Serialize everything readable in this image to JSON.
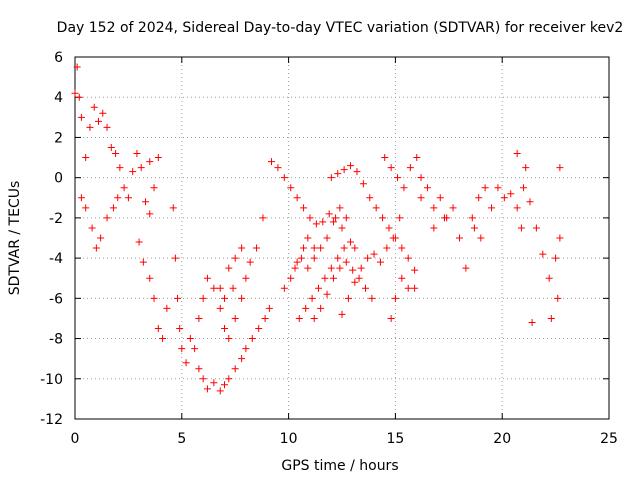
{
  "chart_data": {
    "type": "scatter",
    "title": "Day 152 of 2024, Sidereal Day-to-day VTEC variation (SDTVAR) for receiver kev2",
    "xlabel": "GPS time / hours",
    "ylabel": "SDTVAR / TECUs",
    "xlim": [
      0,
      25
    ],
    "ylim": [
      -12,
      6
    ],
    "xticks": [
      "0",
      "5",
      "10",
      "15",
      "20",
      "25"
    ],
    "yticks": [
      "6",
      "4",
      "2",
      "0",
      "-2",
      "-4",
      "-6",
      "-8",
      "-10",
      "-12"
    ],
    "grid": true,
    "marker": "+",
    "color": "#ff0000",
    "series": [
      {
        "name": "SDTVAR",
        "points": [
          [
            0.0,
            4.2
          ],
          [
            0.1,
            5.5
          ],
          [
            0.2,
            4.0
          ],
          [
            0.3,
            3.0
          ],
          [
            0.5,
            1.0
          ],
          [
            0.7,
            2.5
          ],
          [
            0.9,
            3.5
          ],
          [
            1.1,
            2.8
          ],
          [
            1.3,
            3.2
          ],
          [
            1.5,
            2.5
          ],
          [
            1.7,
            1.5
          ],
          [
            1.9,
            1.2
          ],
          [
            2.1,
            0.5
          ],
          [
            2.3,
            -0.5
          ],
          [
            2.5,
            -1.0
          ],
          [
            2.7,
            0.3
          ],
          [
            2.9,
            1.2
          ],
          [
            3.1,
            0.5
          ],
          [
            3.3,
            -1.2
          ],
          [
            3.5,
            -1.8
          ],
          [
            3.7,
            -0.5
          ],
          [
            3.9,
            1.0
          ],
          [
            3.5,
            0.8
          ],
          [
            0.3,
            -1.0
          ],
          [
            0.5,
            -1.5
          ],
          [
            0.8,
            -2.5
          ],
          [
            1.0,
            -3.5
          ],
          [
            1.2,
            -3.0
          ],
          [
            1.5,
            -2.0
          ],
          [
            1.8,
            -1.5
          ],
          [
            2.0,
            -1.0
          ],
          [
            3.0,
            -3.2
          ],
          [
            3.2,
            -4.2
          ],
          [
            3.5,
            -5.0
          ],
          [
            3.7,
            -6.0
          ],
          [
            3.9,
            -7.5
          ],
          [
            4.1,
            -8.0
          ],
          [
            4.3,
            -6.5
          ],
          [
            4.6,
            -1.5
          ],
          [
            4.7,
            -4.0
          ],
          [
            4.8,
            -6.0
          ],
          [
            4.9,
            -7.5
          ],
          [
            5.0,
            -8.5
          ],
          [
            5.2,
            -9.2
          ],
          [
            5.4,
            -8.0
          ],
          [
            5.6,
            -8.5
          ],
          [
            5.8,
            -9.5
          ],
          [
            6.0,
            -10.0
          ],
          [
            6.2,
            -10.5
          ],
          [
            6.5,
            -10.2
          ],
          [
            6.8,
            -10.6
          ],
          [
            7.0,
            -10.3
          ],
          [
            7.2,
            -10.0
          ],
          [
            7.5,
            -9.5
          ],
          [
            7.8,
            -9.0
          ],
          [
            8.0,
            -8.5
          ],
          [
            8.3,
            -8.0
          ],
          [
            8.6,
            -7.5
          ],
          [
            8.9,
            -7.0
          ],
          [
            9.1,
            -6.5
          ],
          [
            5.8,
            -7.0
          ],
          [
            6.0,
            -6.0
          ],
          [
            6.2,
            -5.0
          ],
          [
            6.5,
            -5.5
          ],
          [
            6.8,
            -6.5
          ],
          [
            7.0,
            -7.5
          ],
          [
            7.2,
            -8.0
          ],
          [
            7.5,
            -7.0
          ],
          [
            7.8,
            -6.0
          ],
          [
            8.0,
            -5.0
          ],
          [
            8.2,
            -4.2
          ],
          [
            8.5,
            -3.5
          ],
          [
            8.8,
            -2.0
          ],
          [
            7.2,
            -4.5
          ],
          [
            7.5,
            -4.0
          ],
          [
            7.8,
            -3.5
          ],
          [
            6.8,
            -5.5
          ],
          [
            7.0,
            -6.0
          ],
          [
            7.4,
            -5.5
          ],
          [
            9.2,
            0.8
          ],
          [
            9.5,
            0.5
          ],
          [
            9.8,
            0.0
          ],
          [
            10.1,
            -0.5
          ],
          [
            10.4,
            -1.0
          ],
          [
            10.7,
            -1.5
          ],
          [
            11.0,
            -2.0
          ],
          [
            11.3,
            -2.3
          ],
          [
            11.6,
            -2.2
          ],
          [
            11.9,
            -1.8
          ],
          [
            12.2,
            -2.0
          ],
          [
            12.5,
            -2.5
          ],
          [
            9.8,
            -5.5
          ],
          [
            10.1,
            -5.0
          ],
          [
            10.4,
            -4.2
          ],
          [
            10.7,
            -3.5
          ],
          [
            10.9,
            -3.0
          ],
          [
            11.2,
            -3.5
          ],
          [
            10.5,
            -7.0
          ],
          [
            10.8,
            -6.5
          ],
          [
            11.1,
            -6.0
          ],
          [
            11.4,
            -5.5
          ],
          [
            11.7,
            -5.0
          ],
          [
            12.0,
            -4.5
          ],
          [
            12.3,
            -4.0
          ],
          [
            12.6,
            -3.5
          ],
          [
            12.9,
            -3.2
          ],
          [
            13.1,
            -3.5
          ],
          [
            10.3,
            -4.5
          ],
          [
            10.6,
            -4.0
          ],
          [
            10.9,
            -4.5
          ],
          [
            11.2,
            -4.0
          ],
          [
            11.5,
            -3.5
          ],
          [
            11.8,
            -3.0
          ],
          [
            12.1,
            -2.2
          ],
          [
            12.4,
            -1.5
          ],
          [
            12.7,
            -2.0
          ],
          [
            11.2,
            -7.0
          ],
          [
            11.5,
            -6.5
          ],
          [
            11.8,
            -5.8
          ],
          [
            12.1,
            -5.0
          ],
          [
            12.4,
            -4.5
          ],
          [
            12.7,
            -4.2
          ],
          [
            13.0,
            -4.6
          ],
          [
            13.3,
            -5.0
          ],
          [
            13.6,
            -5.5
          ],
          [
            13.9,
            -6.0
          ],
          [
            12.0,
            0.0
          ],
          [
            12.3,
            0.2
          ],
          [
            12.6,
            0.4
          ],
          [
            12.9,
            0.6
          ],
          [
            13.2,
            0.3
          ],
          [
            13.5,
            -0.3
          ],
          [
            13.8,
            -1.0
          ],
          [
            14.1,
            -1.5
          ],
          [
            14.4,
            -2.0
          ],
          [
            14.7,
            -2.5
          ],
          [
            15.0,
            -3.0
          ],
          [
            15.3,
            -3.5
          ],
          [
            15.6,
            -4.0
          ],
          [
            15.9,
            -4.6
          ],
          [
            12.5,
            -6.8
          ],
          [
            12.8,
            -6.0
          ],
          [
            13.1,
            -5.2
          ],
          [
            13.4,
            -4.5
          ],
          [
            13.7,
            -4.0
          ],
          [
            14.0,
            -3.8
          ],
          [
            14.3,
            -4.2
          ],
          [
            14.6,
            -3.5
          ],
          [
            14.9,
            -3.0
          ],
          [
            15.2,
            -2.0
          ],
          [
            14.5,
            1.0
          ],
          [
            14.8,
            0.5
          ],
          [
            15.1,
            0.0
          ],
          [
            15.4,
            -0.5
          ],
          [
            15.7,
            0.5
          ],
          [
            16.0,
            1.0
          ],
          [
            16.2,
            0.0
          ],
          [
            14.8,
            -7.0
          ],
          [
            15.0,
            -6.0
          ],
          [
            15.3,
            -5.0
          ],
          [
            15.6,
            -5.5
          ],
          [
            15.9,
            -5.5
          ],
          [
            16.2,
            -1.0
          ],
          [
            16.5,
            -0.5
          ],
          [
            16.8,
            -1.5
          ],
          [
            17.1,
            -1.0
          ],
          [
            17.4,
            -2.0
          ],
          [
            17.7,
            -1.5
          ],
          [
            18.0,
            -3.0
          ],
          [
            18.3,
            -4.5
          ],
          [
            18.6,
            -2.0
          ],
          [
            18.9,
            -1.0
          ],
          [
            19.2,
            -0.5
          ],
          [
            19.5,
            -1.5
          ],
          [
            19.8,
            -0.5
          ],
          [
            20.1,
            -1.0
          ],
          [
            20.4,
            -0.8
          ],
          [
            20.7,
            -1.5
          ],
          [
            21.0,
            -0.5
          ],
          [
            21.3,
            -1.2
          ],
          [
            21.6,
            -2.5
          ],
          [
            21.9,
            -3.8
          ],
          [
            22.2,
            -5.0
          ],
          [
            22.5,
            -4.0
          ],
          [
            22.7,
            -3.0
          ],
          [
            22.6,
            -6.0
          ],
          [
            22.3,
            -7.0
          ],
          [
            21.4,
            -7.2
          ],
          [
            22.7,
            0.5
          ],
          [
            20.7,
            1.2
          ],
          [
            19.0,
            -3.0
          ],
          [
            18.7,
            -2.5
          ],
          [
            17.3,
            -2.0
          ],
          [
            16.8,
            -2.5
          ],
          [
            21.1,
            0.5
          ],
          [
            20.9,
            -2.5
          ]
        ]
      }
    ]
  }
}
